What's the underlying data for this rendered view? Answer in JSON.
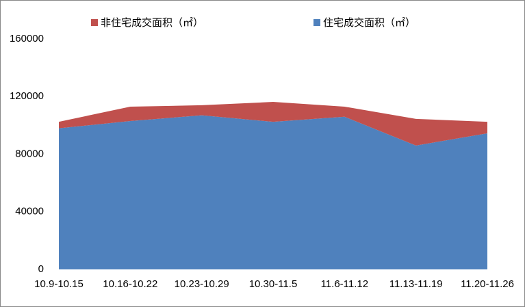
{
  "chart_data": {
    "type": "area",
    "stacked": true,
    "categories": [
      "10.9-10.15",
      "10.16-10.22",
      "10.23-10.29",
      "10.30-11.5",
      "11.6-11.12",
      "11.13-11.19",
      "11.20-11.26"
    ],
    "series": [
      {
        "name": "住宅成交面积（㎡）",
        "color": "#4f81bd",
        "values": [
          98000,
          103000,
          107000,
          102500,
          106000,
          86000,
          94500
        ]
      },
      {
        "name": "非住宅成交面积（㎡）",
        "color": "#c0504d",
        "values": [
          4500,
          10000,
          7000,
          13800,
          7000,
          18500,
          8000
        ]
      }
    ],
    "ylim": [
      0,
      160000
    ],
    "yticks": [
      0,
      40000,
      80000,
      120000,
      160000
    ],
    "legend": "top"
  }
}
